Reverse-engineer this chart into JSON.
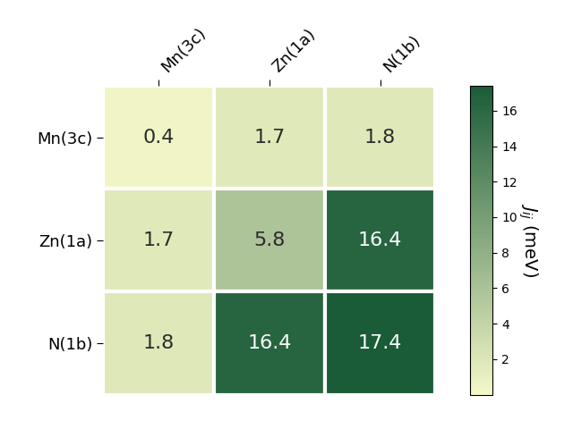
{
  "labels": [
    "Mn(3c)",
    "Zn(1a)",
    "N(1b)"
  ],
  "values": [
    [
      0.4,
      1.7,
      1.8
    ],
    [
      1.7,
      5.8,
      16.4
    ],
    [
      1.8,
      16.4,
      17.4
    ]
  ],
  "vmin": 0,
  "vmax": 17.4,
  "colorbar_label": "$J_{ij}$ (meV)",
  "cmap_colors": [
    "#f5f8c8",
    "#1a5c38"
  ],
  "colorbar_ticks": [
    2,
    4,
    6,
    8,
    10,
    12,
    14,
    16
  ],
  "text_threshold": 8.0,
  "dark_text_color": "#2c2c2c",
  "light_text_color": "#ffffff",
  "annotation_fontsize": 16,
  "label_fontsize": 13,
  "colorbar_label_fontsize": 14,
  "background_color": "#ffffff",
  "grid_color": "#ffffff",
  "grid_linewidth": 3
}
